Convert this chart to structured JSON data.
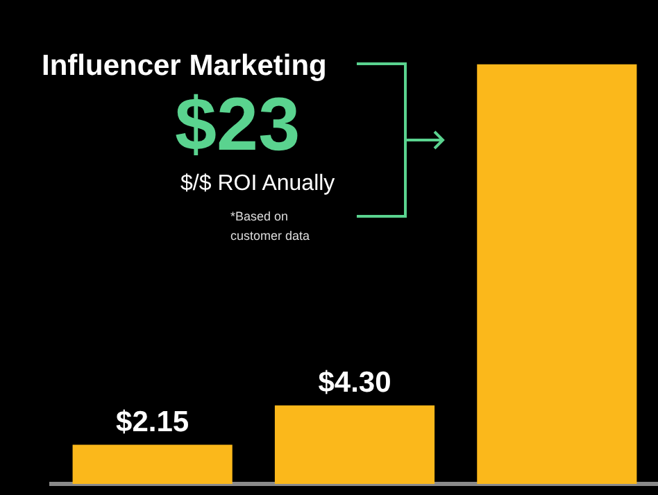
{
  "chart_data": {
    "type": "bar",
    "title": "Influencer Marketing",
    "subtitle": "$/$ ROI Anually",
    "annotations": [
      "$23",
      "*Based on customer data"
    ],
    "categories": [
      null,
      null,
      null
    ],
    "values": [
      2.15,
      4.3,
      23
    ],
    "color": "#fbb81b",
    "value_labels": [
      "$2.15",
      "$4.30",
      null
    ],
    "tick_labels": false,
    "legend": false
  }
}
